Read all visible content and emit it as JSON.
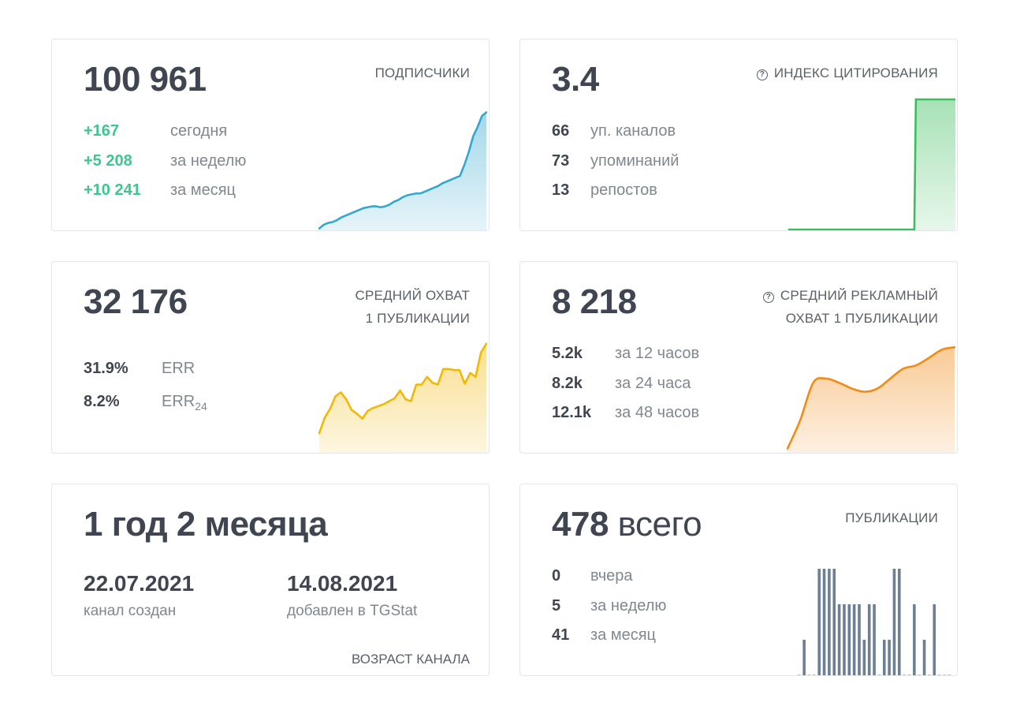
{
  "cards": {
    "subscribers": {
      "title": "ПОДПИСЧИКИ",
      "value": "100 961",
      "stats": [
        {
          "value": "+167",
          "label": "сегодня"
        },
        {
          "value": "+5 208",
          "label": "за неделю"
        },
        {
          "value": "+10 241",
          "label": "за месяц"
        }
      ],
      "color": "#34a7cf"
    },
    "citation": {
      "title": "ИНДЕКС ЦИТИРОВАНИЯ",
      "help_icon": "?",
      "value": "3.4",
      "stats": [
        {
          "value": "66",
          "label": "уп. каналов"
        },
        {
          "value": "73",
          "label": "упоминаний"
        },
        {
          "value": "13",
          "label": "репостов"
        }
      ],
      "color": "#3dbd5d"
    },
    "reach": {
      "title_line1": "СРЕДНИЙ ОХВАТ",
      "title_line2": "1 ПУБЛИКАЦИИ",
      "value": "32 176",
      "stats": [
        {
          "value": "31.9%",
          "label": "ERR",
          "sub": ""
        },
        {
          "value": "8.2%",
          "label": "ERR",
          "sub": "24"
        }
      ],
      "color": "#f2b807"
    },
    "ad_reach": {
      "title_line1": "СРЕДНИЙ РЕКЛАМНЫЙ",
      "title_line2": "ОХВАТ 1 ПУБЛИКАЦИИ",
      "help_icon": "?",
      "value": "8 218",
      "stats": [
        {
          "value": "5.2k",
          "label": "за 12 часов"
        },
        {
          "value": "8.2k",
          "label": "за 24 часа"
        },
        {
          "value": "12.1k",
          "label": "за 48 часов"
        }
      ],
      "color": "#f28a16"
    },
    "age": {
      "title": "ВОЗРАСТ КАНАЛА",
      "value": "1 год 2 месяца",
      "created_date": "22.07.2021",
      "created_label": "канал создан",
      "added_date": "14.08.2021",
      "added_label": "добавлен в TGStat"
    },
    "posts": {
      "title": "ПУБЛИКАЦИИ",
      "value_number": "478",
      "value_suffix": " всего",
      "stats": [
        {
          "value": "0",
          "label": "вчера"
        },
        {
          "value": "5",
          "label": "за неделю"
        },
        {
          "value": "41",
          "label": "за месяц"
        }
      ],
      "color": "#6b7f96"
    }
  },
  "chart_data": [
    {
      "type": "area",
      "title": "Подписчики",
      "values": [
        2,
        6,
        8,
        9,
        11,
        14,
        16,
        18,
        20,
        22,
        24,
        25,
        26,
        26,
        25,
        26,
        28,
        31,
        33,
        36,
        38,
        39,
        40,
        40,
        42,
        44,
        46,
        48,
        51,
        53,
        55,
        57,
        59,
        71,
        85,
        102,
        112,
        124,
        128
      ]
    },
    {
      "type": "area",
      "title": "Индекс цитирования",
      "values": [
        0,
        0,
        0,
        0,
        0,
        0,
        0,
        0,
        0,
        0,
        0,
        0,
        0,
        0,
        0,
        0,
        0,
        0,
        0,
        0,
        0,
        0,
        0,
        0,
        3.4,
        3.4,
        3.4,
        3.4,
        3.4,
        3.4,
        3.4,
        3.4
      ]
    },
    {
      "type": "area",
      "title": "Средний охват 1 публикации",
      "values": [
        20,
        36,
        45,
        58,
        62,
        55,
        44,
        40,
        35,
        43,
        46,
        48,
        50,
        53,
        56,
        64,
        55,
        53,
        70,
        70,
        78,
        72,
        70,
        86,
        86,
        85,
        85,
        71,
        82,
        78,
        103,
        112
      ]
    },
    {
      "type": "area",
      "title": "Средний рекламный охват 1 публикации",
      "values": [
        5,
        40,
        85,
        90,
        85,
        78,
        74,
        78,
        90,
        102,
        106,
        115,
        125,
        128
      ]
    },
    {
      "type": "bar",
      "title": "Публикации",
      "values": [
        0,
        1,
        0,
        0,
        3,
        3,
        3,
        3,
        2,
        2,
        2,
        2,
        2,
        1,
        2,
        2,
        0,
        1,
        1,
        3,
        3,
        0,
        0,
        2,
        0,
        1,
        0,
        2,
        0,
        0,
        0
      ]
    }
  ]
}
